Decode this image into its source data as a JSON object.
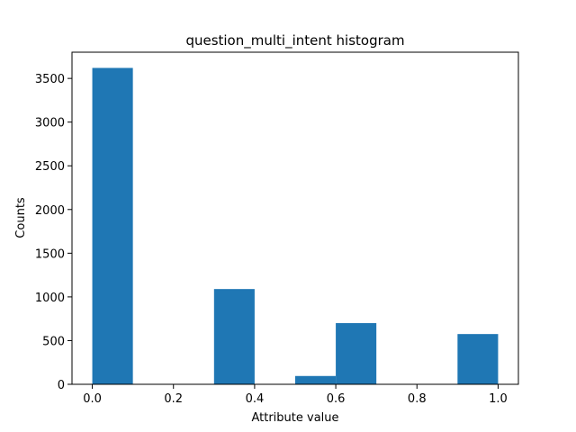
{
  "chart_data": {
    "type": "bar",
    "title": "question_multi_intent histogram",
    "xlabel": "Attribute value",
    "ylabel": "Counts",
    "bins": [
      {
        "x0": 0.0,
        "x1": 0.1,
        "count": 3620
      },
      {
        "x0": 0.1,
        "x1": 0.2,
        "count": 0
      },
      {
        "x0": 0.2,
        "x1": 0.3,
        "count": 0
      },
      {
        "x0": 0.3,
        "x1": 0.4,
        "count": 1090
      },
      {
        "x0": 0.4,
        "x1": 0.5,
        "count": 0
      },
      {
        "x0": 0.5,
        "x1": 0.6,
        "count": 95
      },
      {
        "x0": 0.6,
        "x1": 0.7,
        "count": 700
      },
      {
        "x0": 0.7,
        "x1": 0.8,
        "count": 0
      },
      {
        "x0": 0.8,
        "x1": 0.9,
        "count": 0
      },
      {
        "x0": 0.9,
        "x1": 1.0,
        "count": 575
      }
    ],
    "xlim": [
      -0.05,
      1.05
    ],
    "ylim": [
      0,
      3800
    ],
    "xticks": [
      {
        "value": 0.0,
        "label": "0.0"
      },
      {
        "value": 0.2,
        "label": "0.2"
      },
      {
        "value": 0.4,
        "label": "0.4"
      },
      {
        "value": 0.6,
        "label": "0.6"
      },
      {
        "value": 0.8,
        "label": "0.8"
      },
      {
        "value": 1.0,
        "label": "1.0"
      }
    ],
    "yticks": [
      {
        "value": 0,
        "label": "0"
      },
      {
        "value": 500,
        "label": "500"
      },
      {
        "value": 1000,
        "label": "1000"
      },
      {
        "value": 1500,
        "label": "1500"
      },
      {
        "value": 2000,
        "label": "2000"
      },
      {
        "value": 2500,
        "label": "2500"
      },
      {
        "value": 3000,
        "label": "3000"
      },
      {
        "value": 3500,
        "label": "3500"
      }
    ],
    "grid": false,
    "legend": "none",
    "bar_color": "#1f77b4"
  }
}
